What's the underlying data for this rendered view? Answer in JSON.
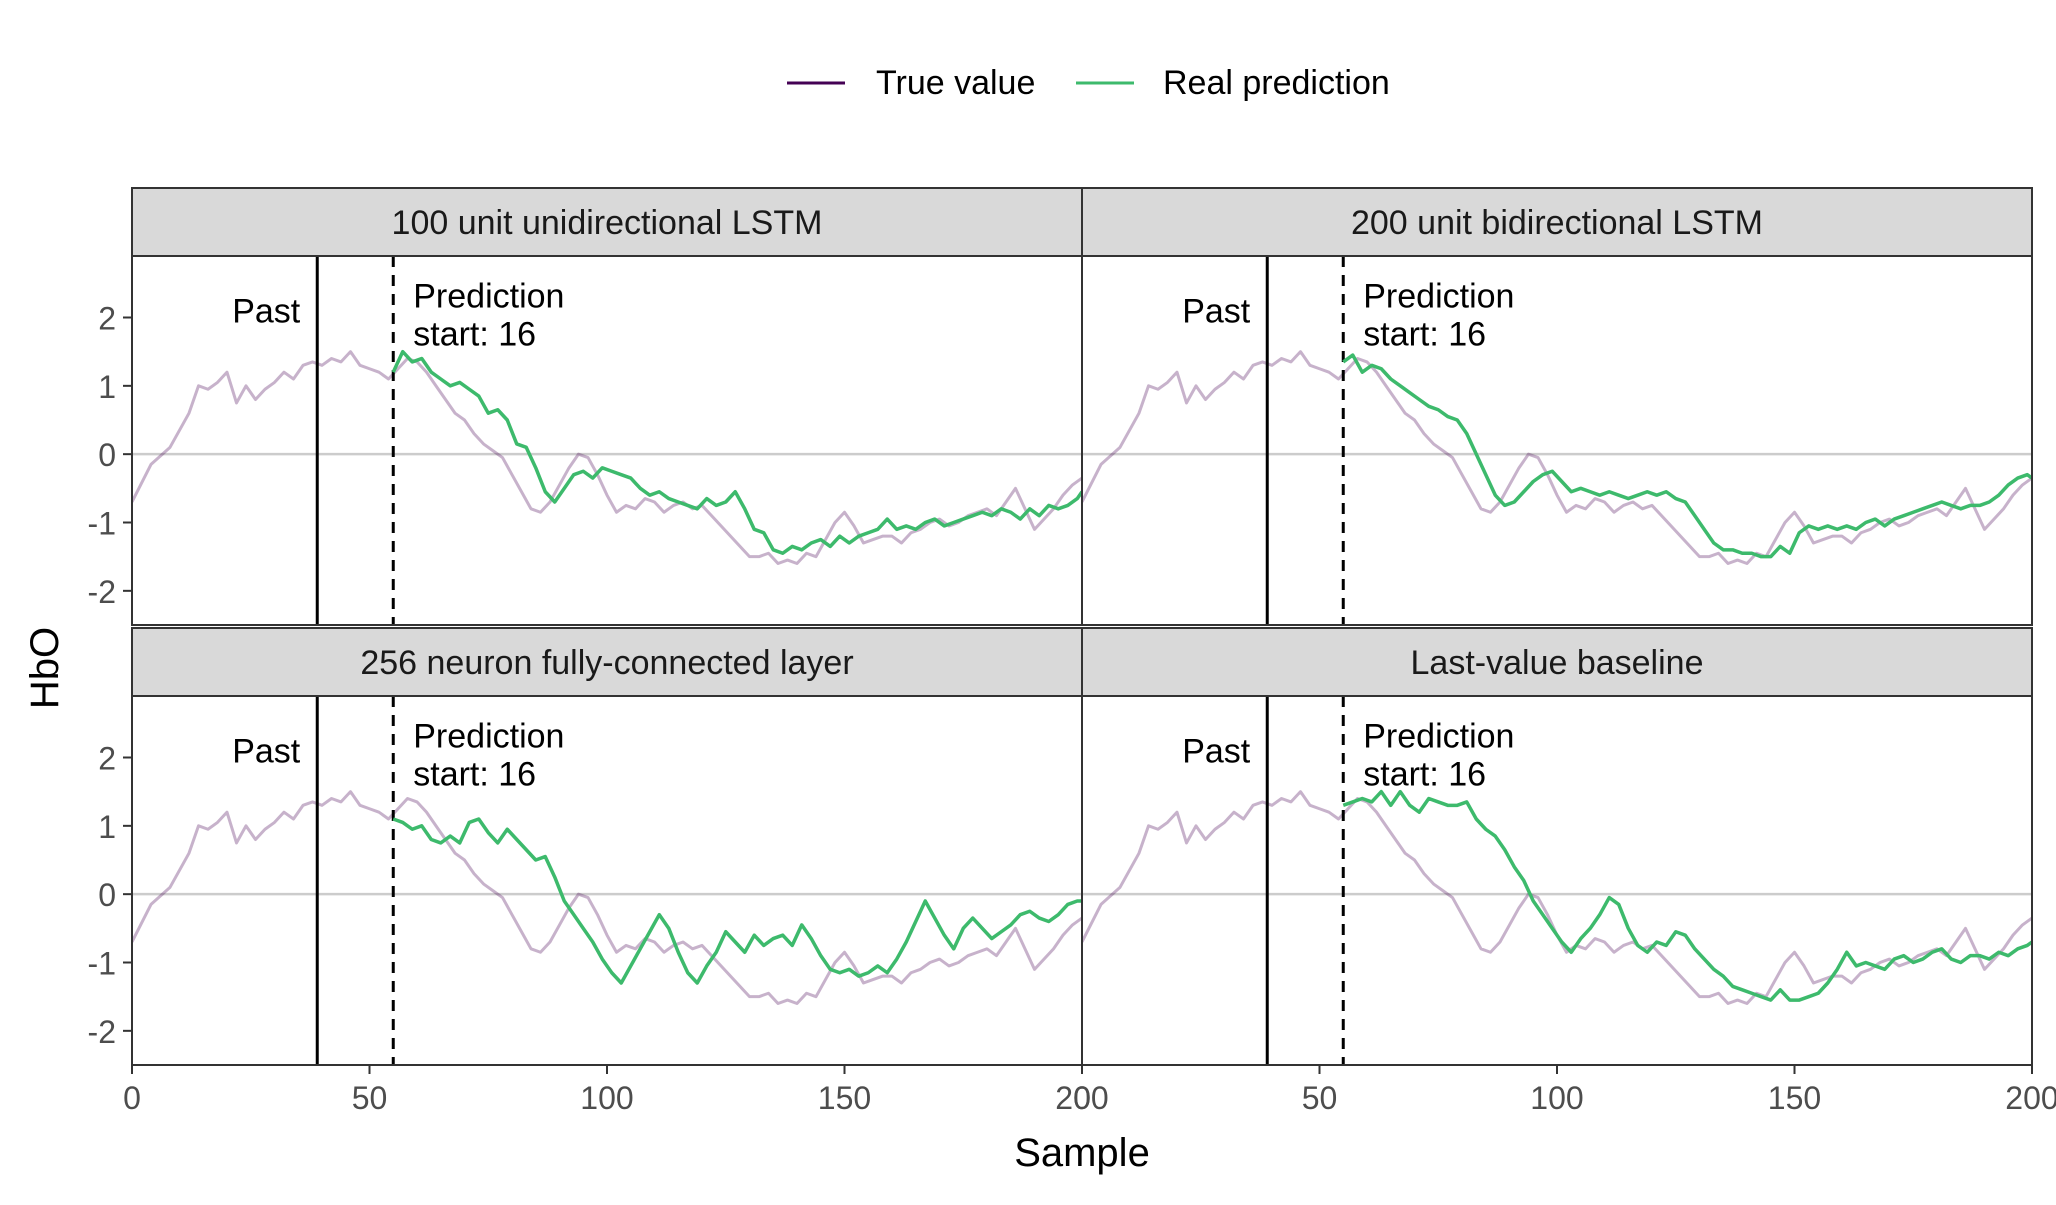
{
  "legend": {
    "position": "top",
    "items": [
      {
        "label": "True value",
        "color": "#440154"
      },
      {
        "label": "Real prediction",
        "color": "#3dba6c"
      }
    ]
  },
  "chart_data": {
    "type": "line",
    "layout": "2x2 facets",
    "xlabel": "Sample",
    "ylabel": "HbO",
    "xlim": [
      0,
      200
    ],
    "ylim": [
      -2.5,
      2.9
    ],
    "xticks": [
      0,
      50,
      100,
      150,
      200
    ],
    "yticks": [
      -2,
      -1,
      0,
      1,
      2
    ],
    "grid": false,
    "reference_line_y": 0,
    "past_boundary_x": 39,
    "prediction_start_x": 55,
    "past_label": "Past",
    "prediction_label_line1": "Prediction",
    "prediction_label_line2": "start: 16",
    "true_value": {
      "name": "True value",
      "x": [
        0,
        4,
        8,
        12,
        14,
        16,
        18,
        20,
        22,
        24,
        26,
        28,
        30,
        32,
        34,
        36,
        38,
        40,
        42,
        44,
        46,
        48,
        50,
        52,
        54,
        56,
        58,
        60,
        62,
        64,
        66,
        68,
        70,
        72,
        74,
        76,
        78,
        80,
        82,
        84,
        86,
        88,
        90,
        92,
        94,
        96,
        98,
        100,
        102,
        104,
        106,
        108,
        110,
        112,
        114,
        116,
        118,
        120,
        122,
        124,
        126,
        128,
        130,
        132,
        134,
        136,
        138,
        140,
        142,
        144,
        146,
        148,
        150,
        152,
        154,
        156,
        158,
        160,
        162,
        164,
        166,
        168,
        170,
        172,
        174,
        176,
        178,
        180,
        182,
        184,
        186,
        188,
        190,
        192,
        194,
        196,
        198,
        200
      ],
      "y": [
        -0.7,
        -0.15,
        0.1,
        0.6,
        1.0,
        0.95,
        1.05,
        1.2,
        0.75,
        1.0,
        0.8,
        0.95,
        1.05,
        1.2,
        1.1,
        1.3,
        1.35,
        1.3,
        1.4,
        1.35,
        1.5,
        1.3,
        1.25,
        1.2,
        1.1,
        1.25,
        1.4,
        1.35,
        1.2,
        1.0,
        0.8,
        0.6,
        0.5,
        0.3,
        0.15,
        0.05,
        -0.05,
        -0.3,
        -0.55,
        -0.8,
        -0.85,
        -0.7,
        -0.45,
        -0.2,
        0.0,
        -0.05,
        -0.3,
        -0.6,
        -0.85,
        -0.75,
        -0.8,
        -0.65,
        -0.7,
        -0.85,
        -0.75,
        -0.7,
        -0.8,
        -0.75,
        -0.9,
        -1.05,
        -1.2,
        -1.35,
        -1.5,
        -1.5,
        -1.45,
        -1.6,
        -1.55,
        -1.6,
        -1.45,
        -1.5,
        -1.25,
        -1.0,
        -0.85,
        -1.05,
        -1.3,
        -1.25,
        -1.2,
        -1.2,
        -1.3,
        -1.15,
        -1.1,
        -1.0,
        -0.95,
        -1.05,
        -1.0,
        -0.9,
        -0.85,
        -0.8,
        -0.9,
        -0.7,
        -0.5,
        -0.8,
        -1.1,
        -0.95,
        -0.8,
        -0.6,
        -0.45,
        -0.35
      ]
    },
    "panels": [
      {
        "title": "100 unit unidirectional LSTM",
        "prediction": {
          "name": "Real prediction",
          "x": [
            55,
            57,
            59,
            61,
            63,
            65,
            67,
            69,
            71,
            73,
            75,
            77,
            79,
            81,
            83,
            85,
            87,
            89,
            91,
            93,
            95,
            97,
            99,
            101,
            103,
            105,
            107,
            109,
            111,
            113,
            115,
            117,
            119,
            121,
            123,
            125,
            127,
            129,
            131,
            133,
            135,
            137,
            139,
            141,
            143,
            145,
            147,
            149,
            151,
            153,
            155,
            157,
            159,
            161,
            163,
            165,
            167,
            169,
            171,
            173,
            175,
            177,
            179,
            181,
            183,
            185,
            187,
            189,
            191,
            193,
            195,
            197,
            199,
            200
          ],
          "y": [
            1.2,
            1.5,
            1.35,
            1.4,
            1.2,
            1.1,
            1.0,
            1.05,
            0.95,
            0.85,
            0.6,
            0.65,
            0.5,
            0.15,
            0.1,
            -0.2,
            -0.55,
            -0.7,
            -0.5,
            -0.3,
            -0.25,
            -0.35,
            -0.2,
            -0.25,
            -0.3,
            -0.35,
            -0.5,
            -0.6,
            -0.55,
            -0.65,
            -0.7,
            -0.75,
            -0.8,
            -0.65,
            -0.75,
            -0.7,
            -0.55,
            -0.8,
            -1.1,
            -1.15,
            -1.4,
            -1.45,
            -1.35,
            -1.4,
            -1.3,
            -1.25,
            -1.35,
            -1.2,
            -1.3,
            -1.2,
            -1.15,
            -1.1,
            -0.95,
            -1.1,
            -1.05,
            -1.1,
            -1.0,
            -0.95,
            -1.05,
            -1.0,
            -0.95,
            -0.9,
            -0.85,
            -0.9,
            -0.8,
            -0.85,
            -0.95,
            -0.8,
            -0.9,
            -0.75,
            -0.8,
            -0.75,
            -0.65,
            -0.55
          ]
        }
      },
      {
        "title": "200 unit bidirectional LSTM",
        "prediction": {
          "name": "Real prediction",
          "x": [
            55,
            57,
            59,
            61,
            63,
            65,
            67,
            69,
            71,
            73,
            75,
            77,
            79,
            81,
            83,
            85,
            87,
            89,
            91,
            93,
            95,
            97,
            99,
            101,
            103,
            105,
            107,
            109,
            111,
            113,
            115,
            117,
            119,
            121,
            123,
            125,
            127,
            129,
            131,
            133,
            135,
            137,
            139,
            141,
            143,
            145,
            147,
            149,
            151,
            153,
            155,
            157,
            159,
            161,
            163,
            165,
            167,
            169,
            171,
            173,
            175,
            177,
            179,
            181,
            183,
            185,
            187,
            189,
            191,
            193,
            195,
            197,
            199,
            200
          ],
          "y": [
            1.35,
            1.45,
            1.2,
            1.3,
            1.25,
            1.1,
            1.0,
            0.9,
            0.8,
            0.7,
            0.65,
            0.55,
            0.5,
            0.3,
            0.0,
            -0.3,
            -0.6,
            -0.75,
            -0.7,
            -0.55,
            -0.4,
            -0.3,
            -0.25,
            -0.4,
            -0.55,
            -0.5,
            -0.55,
            -0.6,
            -0.55,
            -0.6,
            -0.65,
            -0.6,
            -0.55,
            -0.6,
            -0.55,
            -0.65,
            -0.7,
            -0.9,
            -1.1,
            -1.3,
            -1.4,
            -1.4,
            -1.45,
            -1.45,
            -1.5,
            -1.5,
            -1.35,
            -1.45,
            -1.15,
            -1.05,
            -1.1,
            -1.05,
            -1.1,
            -1.05,
            -1.1,
            -1.0,
            -0.95,
            -1.05,
            -0.95,
            -0.9,
            -0.85,
            -0.8,
            -0.75,
            -0.7,
            -0.75,
            -0.8,
            -0.75,
            -0.75,
            -0.7,
            -0.6,
            -0.45,
            -0.35,
            -0.3,
            -0.35
          ]
        }
      },
      {
        "title": "256 neuron fully-connected layer",
        "prediction": {
          "name": "Real prediction",
          "x": [
            55,
            57,
            59,
            61,
            63,
            65,
            67,
            69,
            71,
            73,
            75,
            77,
            79,
            81,
            83,
            85,
            87,
            89,
            91,
            93,
            95,
            97,
            99,
            101,
            103,
            105,
            107,
            109,
            111,
            113,
            115,
            117,
            119,
            121,
            123,
            125,
            127,
            129,
            131,
            133,
            135,
            137,
            139,
            141,
            143,
            145,
            147,
            149,
            151,
            153,
            155,
            157,
            159,
            161,
            163,
            165,
            167,
            169,
            171,
            173,
            175,
            177,
            179,
            181,
            183,
            185,
            187,
            189,
            191,
            193,
            195,
            197,
            199,
            200
          ],
          "y": [
            1.1,
            1.05,
            0.95,
            1.0,
            0.8,
            0.75,
            0.85,
            0.75,
            1.05,
            1.1,
            0.9,
            0.75,
            0.95,
            0.8,
            0.65,
            0.5,
            0.55,
            0.25,
            -0.1,
            -0.3,
            -0.5,
            -0.7,
            -0.95,
            -1.15,
            -1.3,
            -1.05,
            -0.8,
            -0.55,
            -0.3,
            -0.5,
            -0.85,
            -1.15,
            -1.3,
            -1.05,
            -0.85,
            -0.55,
            -0.7,
            -0.85,
            -0.6,
            -0.75,
            -0.65,
            -0.6,
            -0.75,
            -0.45,
            -0.65,
            -0.9,
            -1.1,
            -1.15,
            -1.1,
            -1.2,
            -1.15,
            -1.05,
            -1.15,
            -0.95,
            -0.7,
            -0.4,
            -0.1,
            -0.35,
            -0.6,
            -0.8,
            -0.5,
            -0.35,
            -0.5,
            -0.65,
            -0.55,
            -0.45,
            -0.3,
            -0.25,
            -0.35,
            -0.4,
            -0.3,
            -0.15,
            -0.1,
            -0.1
          ]
        }
      },
      {
        "title": "Last-value baseline",
        "prediction": {
          "name": "Real prediction",
          "x": [
            55,
            57,
            59,
            61,
            63,
            65,
            67,
            69,
            71,
            73,
            75,
            77,
            79,
            81,
            83,
            85,
            87,
            89,
            91,
            93,
            95,
            97,
            99,
            101,
            103,
            105,
            107,
            109,
            111,
            113,
            115,
            117,
            119,
            121,
            123,
            125,
            127,
            129,
            131,
            133,
            135,
            137,
            139,
            141,
            143,
            145,
            147,
            149,
            151,
            153,
            155,
            157,
            159,
            161,
            163,
            165,
            167,
            169,
            171,
            173,
            175,
            177,
            179,
            181,
            183,
            185,
            187,
            189,
            191,
            193,
            195,
            197,
            199,
            200
          ],
          "y": [
            1.3,
            1.35,
            1.4,
            1.35,
            1.5,
            1.3,
            1.5,
            1.3,
            1.2,
            1.4,
            1.35,
            1.3,
            1.3,
            1.35,
            1.1,
            0.95,
            0.85,
            0.65,
            0.4,
            0.2,
            -0.1,
            -0.3,
            -0.5,
            -0.7,
            -0.85,
            -0.65,
            -0.5,
            -0.3,
            -0.05,
            -0.15,
            -0.5,
            -0.75,
            -0.85,
            -0.7,
            -0.75,
            -0.55,
            -0.6,
            -0.8,
            -0.95,
            -1.1,
            -1.2,
            -1.35,
            -1.4,
            -1.45,
            -1.5,
            -1.55,
            -1.4,
            -1.55,
            -1.55,
            -1.5,
            -1.45,
            -1.3,
            -1.1,
            -0.85,
            -1.05,
            -1.0,
            -1.05,
            -1.1,
            -0.95,
            -0.9,
            -1.0,
            -0.95,
            -0.85,
            -0.8,
            -0.95,
            -1.0,
            -0.9,
            -0.9,
            -0.95,
            -0.85,
            -0.9,
            -0.8,
            -0.75,
            -0.7
          ]
        }
      }
    ]
  }
}
